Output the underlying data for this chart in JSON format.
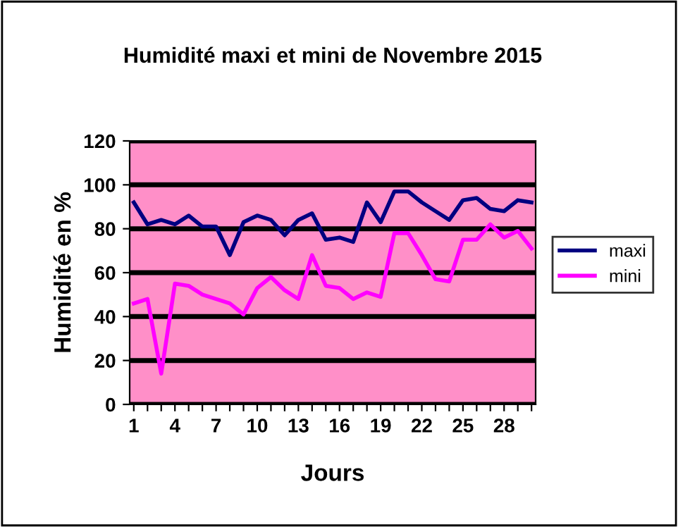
{
  "chart_data": {
    "type": "line",
    "title": "Humidité maxi et mini de Novembre 2015",
    "xlabel": "Jours",
    "ylabel": "Humidité en %",
    "categories": [
      "1",
      null,
      null,
      "4",
      null,
      null,
      "7",
      null,
      null,
      "10",
      null,
      null,
      "13",
      null,
      null,
      "16",
      null,
      null,
      "19",
      null,
      null,
      "22",
      null,
      null,
      "25",
      null,
      null,
      "28",
      null,
      null
    ],
    "series": [
      {
        "name": "maxi",
        "color": "#000080",
        "values": [
          92,
          82,
          84,
          82,
          86,
          81,
          81,
          68,
          83,
          86,
          84,
          77,
          84,
          87,
          75,
          76,
          74,
          92,
          83,
          97,
          97,
          92,
          88,
          84,
          93,
          94,
          89,
          88,
          93,
          92
        ]
      },
      {
        "name": "mini",
        "color": "#ff00ff",
        "values": [
          46,
          48,
          14,
          55,
          54,
          50,
          48,
          46,
          41,
          53,
          58,
          52,
          48,
          68,
          54,
          53,
          48,
          51,
          49,
          78,
          78,
          68,
          57,
          56,
          75,
          75,
          82,
          76,
          79,
          71
        ]
      }
    ],
    "ylim": [
      0,
      120
    ],
    "yticks": [
      0,
      20,
      40,
      60,
      80,
      100,
      120
    ],
    "grid": "y",
    "legend": "right",
    "marker": "none",
    "line_style": "solid"
  }
}
